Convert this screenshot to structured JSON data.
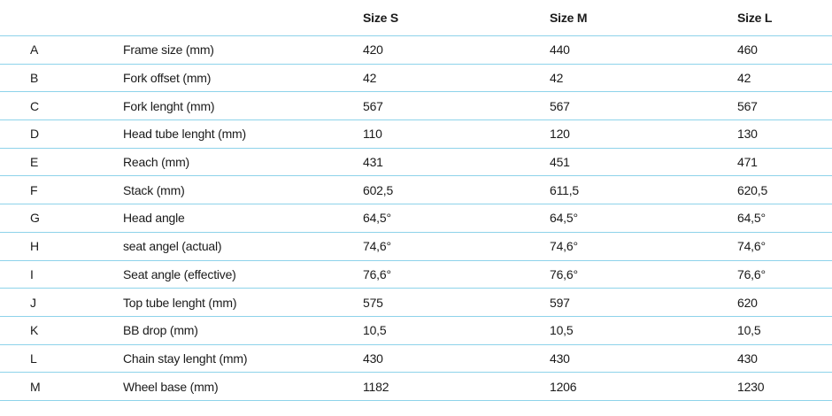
{
  "table": {
    "headers": [
      "",
      "",
      "Size S",
      "Size M",
      "Size L"
    ],
    "rows": [
      {
        "key": "A",
        "name": "Frame size (mm)",
        "s": "420",
        "m": "440",
        "l": "460"
      },
      {
        "key": "B",
        "name": "Fork offset (mm)",
        "s": "42",
        "m": "42",
        "l": "42"
      },
      {
        "key": "C",
        "name": "Fork lenght (mm)",
        "s": "567",
        "m": "567",
        "l": "567"
      },
      {
        "key": "D",
        "name": "Head tube lenght (mm)",
        "s": "110",
        "m": "120",
        "l": "130"
      },
      {
        "key": "E",
        "name": "Reach (mm)",
        "s": "431",
        "m": "451",
        "l": "471"
      },
      {
        "key": "F",
        "name": "Stack (mm)",
        "s": "602,5",
        "m": "611,5",
        "l": "620,5"
      },
      {
        "key": "G",
        "name": "Head angle",
        "s": "64,5°",
        "m": "64,5°",
        "l": "64,5°"
      },
      {
        "key": "H",
        "name": "seat angel (actual)",
        "s": "74,6°",
        "m": "74,6°",
        "l": "74,6°"
      },
      {
        "key": "I",
        "name": "Seat angle (effective)",
        "s": "76,6°",
        "m": "76,6°",
        "l": "76,6°"
      },
      {
        "key": "J",
        "name": "Top tube lenght (mm)",
        "s": "575",
        "m": "597",
        "l": "620"
      },
      {
        "key": "K",
        "name": "BB drop (mm)",
        "s": "10,5",
        "m": "10,5",
        "l": "10,5"
      },
      {
        "key": "L",
        "name": "Chain stay lenght (mm)",
        "s": "430",
        "m": "430",
        "l": "430"
      },
      {
        "key": "M",
        "name": "Wheel base (mm)",
        "s": "1182",
        "m": "1206",
        "l": "1230"
      }
    ]
  },
  "colors": {
    "rule_line": "#8ed3ea",
    "text": "#1a1a1a"
  }
}
